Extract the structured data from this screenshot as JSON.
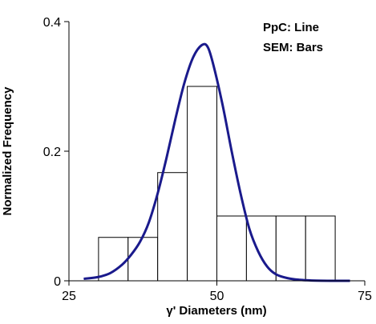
{
  "chart_data": {
    "type": "bar",
    "xlabel": "γ' Diameters (nm)",
    "ylabel": "Normalized Frequency",
    "xlim": [
      25,
      75
    ],
    "ylim": [
      0,
      0.4
    ],
    "x_ticks": [
      "25",
      "50",
      "75"
    ],
    "y_ticks": [
      "0",
      "0.2",
      "0.4"
    ],
    "x_tick_values": [
      25,
      50,
      75
    ],
    "y_tick_values": [
      0,
      0.2,
      0.4
    ],
    "grid": false,
    "annotations": [
      "PpC: Line",
      "SEM: Bars"
    ],
    "series": [
      {
        "type": "bar",
        "bins": [
          {
            "x0": 30,
            "x1": 35,
            "value": 0.067
          },
          {
            "x0": 35,
            "x1": 40,
            "value": 0.067
          },
          {
            "x0": 40,
            "x1": 45,
            "value": 0.167
          },
          {
            "x0": 45,
            "x1": 50,
            "value": 0.3
          },
          {
            "x0": 50,
            "x1": 55,
            "value": 0.1
          },
          {
            "x0": 55,
            "x1": 60,
            "value": 0.1
          },
          {
            "x0": 60,
            "x1": 65,
            "value": 0.1
          },
          {
            "x0": 65,
            "x1": 70,
            "value": 0.1
          }
        ],
        "color": "#ffffff",
        "stroke": "#000000"
      },
      {
        "type": "line",
        "color": "#1a1a8c",
        "points": [
          [
            27.5,
            0.003
          ],
          [
            30,
            0.006
          ],
          [
            32,
            0.012
          ],
          [
            34,
            0.025
          ],
          [
            35.5,
            0.04
          ],
          [
            37,
            0.06
          ],
          [
            38.5,
            0.09
          ],
          [
            40,
            0.135
          ],
          [
            41.5,
            0.19
          ],
          [
            43,
            0.25
          ],
          [
            44.5,
            0.305
          ],
          [
            46,
            0.345
          ],
          [
            47.5,
            0.364
          ],
          [
            48.5,
            0.36
          ],
          [
            49.5,
            0.33
          ],
          [
            51,
            0.27
          ],
          [
            52.5,
            0.2
          ],
          [
            54,
            0.135
          ],
          [
            55.5,
            0.08
          ],
          [
            57,
            0.045
          ],
          [
            58.5,
            0.022
          ],
          [
            60,
            0.01
          ],
          [
            62,
            0.004
          ],
          [
            64,
            0.0015
          ],
          [
            66,
            0.0005
          ],
          [
            70,
            0.0
          ],
          [
            72.5,
            0.0
          ]
        ]
      }
    ]
  }
}
